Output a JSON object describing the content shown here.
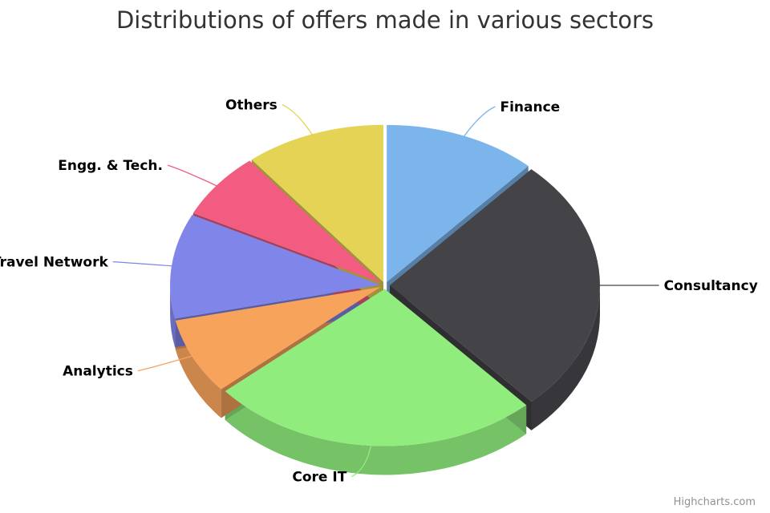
{
  "chart_data": {
    "type": "pie",
    "subtype": "3d",
    "title": "Distributions of offers made in various sectors",
    "categories": [
      "Finance",
      "Consultancy",
      "Core IT",
      "Analytics",
      "Travel Network",
      "Engg. & Tech.",
      "Others"
    ],
    "values": [
      12,
      27,
      26,
      8,
      11,
      7,
      11
    ],
    "colors": [
      "#7cb5ec",
      "#434348",
      "#90ed7d",
      "#f7a35c",
      "#8085e9",
      "#f15c80",
      "#e4d354"
    ],
    "legend": "none"
  },
  "credits": "Highcharts.com"
}
